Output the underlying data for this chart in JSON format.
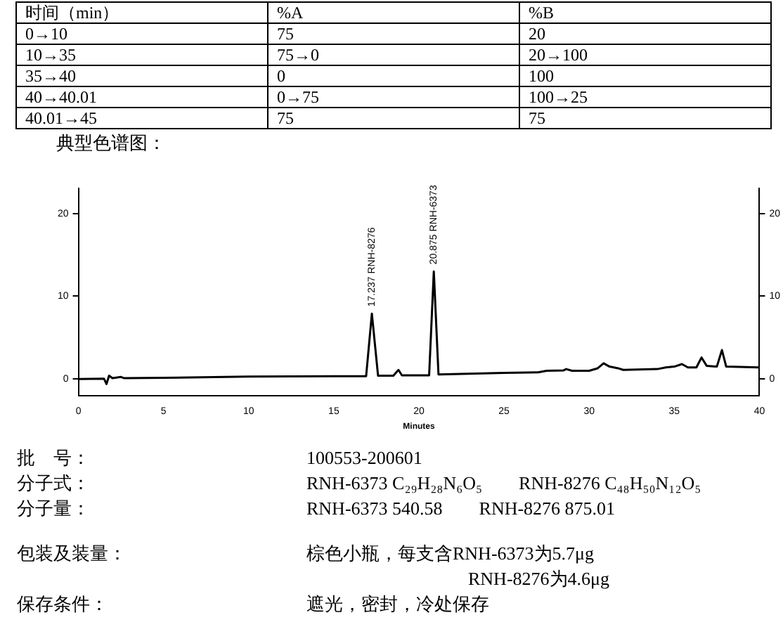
{
  "chart_data": [
    {
      "type": "other",
      "annotations": [
        "时间（min）",
        "%A",
        "%B",
        "0→10",
        "75",
        "20",
        "10→35",
        "75→0",
        "20→100",
        "35→40",
        "0",
        "100",
        "40→40.01",
        "0→75",
        "100→25",
        "40.01→45",
        "75",
        "75"
      ]
    },
    {
      "type": "line",
      "title": "典型色谱图：",
      "xlabel": "Minutes",
      "xlim": [
        0,
        40
      ],
      "xticks": [
        0,
        5,
        10,
        15,
        20,
        25,
        30,
        35,
        40
      ],
      "ylim": [
        -2,
        23
      ],
      "yticks": [
        0,
        10,
        20
      ],
      "y2lim": [
        -2,
        23
      ],
      "y2ticks": [
        0,
        10,
        20
      ],
      "grid": false,
      "legend": false,
      "marker": "none",
      "annotations": [
        {
          "text": "17.237 RNH-8276",
          "x": 17.237,
          "y": 7.9
        },
        {
          "text": "20.875 RNH-6373",
          "x": 20.875,
          "y": 13.0
        }
      ],
      "series": [
        {
          "color": "#000000",
          "x": [
            0,
            1.5,
            1.65,
            1.8,
            2.0,
            2.5,
            2.7,
            5,
            10,
            15,
            16.9,
            17.237,
            17.6,
            18.5,
            18.8,
            19.0,
            20.6,
            20.875,
            21.15,
            22,
            25,
            27,
            27.5,
            28.5,
            28.65,
            29,
            30,
            30.5,
            30.85,
            31.2,
            31.7,
            32,
            34,
            34.5,
            35,
            35.45,
            35.8,
            36.3,
            36.6,
            36.9,
            37.5,
            37.8,
            38.05,
            40
          ],
          "values": [
            0,
            0.05,
            -0.6,
            0.4,
            0.1,
            0.25,
            0.1,
            0.15,
            0.3,
            0.35,
            0.35,
            7.9,
            0.4,
            0.4,
            1.1,
            0.45,
            0.45,
            13.0,
            0.55,
            0.6,
            0.75,
            0.8,
            1.0,
            1.05,
            1.2,
            1.0,
            1.0,
            1.3,
            1.9,
            1.5,
            1.3,
            1.1,
            1.2,
            1.4,
            1.5,
            1.8,
            1.4,
            1.4,
            2.6,
            1.6,
            1.5,
            3.5,
            1.5,
            1.4
          ]
        }
      ]
    },
    {
      "type": "other",
      "annotations": [
        "批　号：",
        "100553-200601",
        "分子式：",
        "RNH-6373 C₂₉H₂₈N₆O₅　　RNH-8276 C₄₈H₅₀N₁₂O₅",
        "分子量：",
        "RNH-6373 540.58　　RNH-8276 875.01",
        "包装及装量：",
        "棕色小瓶，每支含RNH-6373为5.7μg\nRNH-8276为4.6μg",
        "保存条件：",
        "遮光，密封，冷处保存"
      ]
    }
  ]
}
